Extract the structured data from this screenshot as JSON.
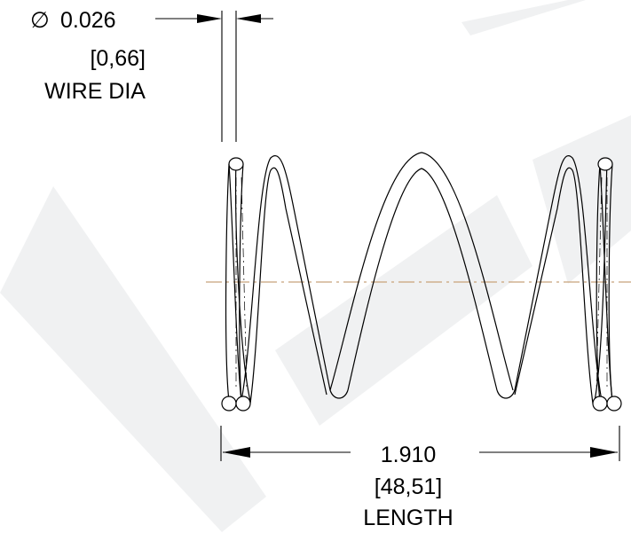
{
  "wire_dia": {
    "symbol": "∅",
    "value": "0.026",
    "metric": "[0,66]",
    "label": "WIRE DIA"
  },
  "length": {
    "value": "1.910",
    "metric": "[48,51]",
    "label": "LENGTH"
  },
  "colors": {
    "line": "#000000",
    "centerline": "#c8a27a",
    "watermark": "#cfd3d8"
  }
}
